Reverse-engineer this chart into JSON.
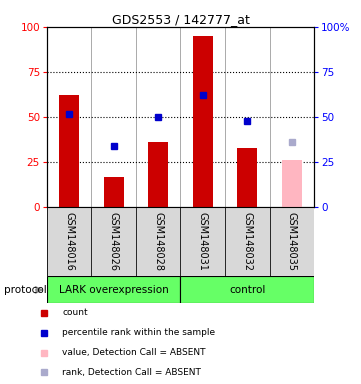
{
  "title": "GDS2553 / 142777_at",
  "samples": [
    "GSM148016",
    "GSM148026",
    "GSM148028",
    "GSM148031",
    "GSM148032",
    "GSM148035"
  ],
  "counts": [
    62,
    17,
    36,
    95,
    33,
    null
  ],
  "ranks": [
    52,
    34,
    50,
    62,
    48,
    null
  ],
  "absent_count": [
    null,
    null,
    null,
    null,
    null,
    26
  ],
  "absent_rank": [
    null,
    null,
    null,
    null,
    null,
    36
  ],
  "groups": [
    {
      "label": "LARK overexpression",
      "start": 0,
      "end": 3,
      "color": "#66FF66"
    },
    {
      "label": "control",
      "start": 3,
      "end": 6,
      "color": "#66FF66"
    }
  ],
  "ylim": [
    0,
    100
  ],
  "yticks": [
    0,
    25,
    50,
    75,
    100
  ],
  "bar_color": "#CC0000",
  "rank_color": "#0000CC",
  "absent_bar_color": "#FFB6C1",
  "absent_rank_color": "#AAAACC",
  "bg_color": "#D8D8D8",
  "protocol_label": "protocol",
  "legend_items": [
    {
      "color": "#CC0000",
      "label": "count"
    },
    {
      "color": "#0000CC",
      "label": "percentile rank within the sample"
    },
    {
      "color": "#FFB6C1",
      "label": "value, Detection Call = ABSENT"
    },
    {
      "color": "#AAAACC",
      "label": "rank, Detection Call = ABSENT"
    }
  ]
}
